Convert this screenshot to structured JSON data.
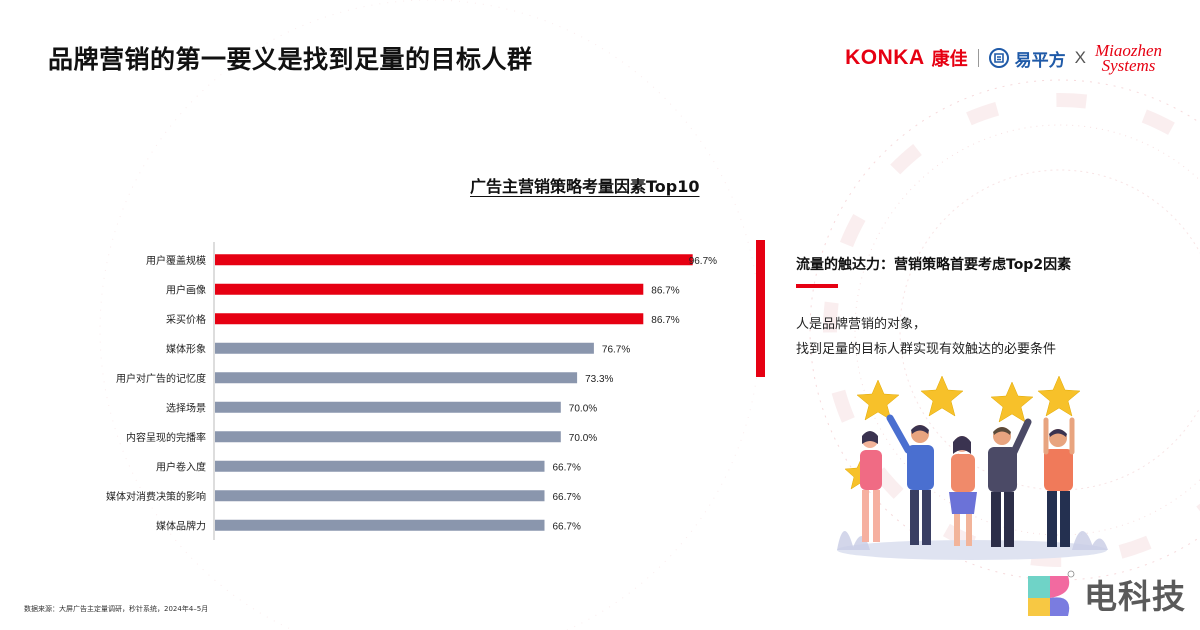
{
  "page": {
    "title": "品牌营销的第一要义是找到足量的目标人群"
  },
  "logos": {
    "konka": "KONKA",
    "kangjia": "康佳",
    "yipingfang": "易平方",
    "x": "X",
    "miaozhen_line1": "Miaozhen",
    "miaozhen_line2": "Systems"
  },
  "chart_data": {
    "type": "bar",
    "orientation": "horizontal",
    "title": "广告主营销策略考量因素Top10",
    "xlabel": "",
    "ylabel": "",
    "categories": [
      "用户覆盖规模",
      "用户画像",
      "采买价格",
      "媒体形象",
      "用户对广告的记忆度",
      "选择场景",
      "内容呈现的完播率",
      "用户卷入度",
      "媒体对消费决策的影响",
      "媒体品牌力"
    ],
    "values": [
      96.7,
      86.7,
      86.7,
      76.7,
      73.3,
      70.0,
      70.0,
      66.7,
      66.7,
      66.7
    ],
    "value_labels": [
      "96.7%",
      "86.7%",
      "86.7%",
      "76.7%",
      "73.3%",
      "70.0%",
      "70.0%",
      "66.7%",
      "66.7%",
      "66.7%"
    ],
    "highlight_count": 3,
    "xlim": [
      0,
      100
    ],
    "grid": false,
    "legend": "none",
    "colors": {
      "highlight": "#e60012",
      "normal": "#8a96ad"
    }
  },
  "insight": {
    "title": "流量的触达力：营销策略首要考虑Top2因素",
    "line1": "人是品牌营销的对象，",
    "line2": "找到足量的目标人群实现有效触达的必要条件"
  },
  "source": "数据来源：大屏广告主定量调研，秒针系统，2024年4–5月",
  "watermark": {
    "text": "电科技",
    "icon": "dianke-logo-icon"
  },
  "illustration": {
    "icon": "people-holding-stars-illustration"
  }
}
